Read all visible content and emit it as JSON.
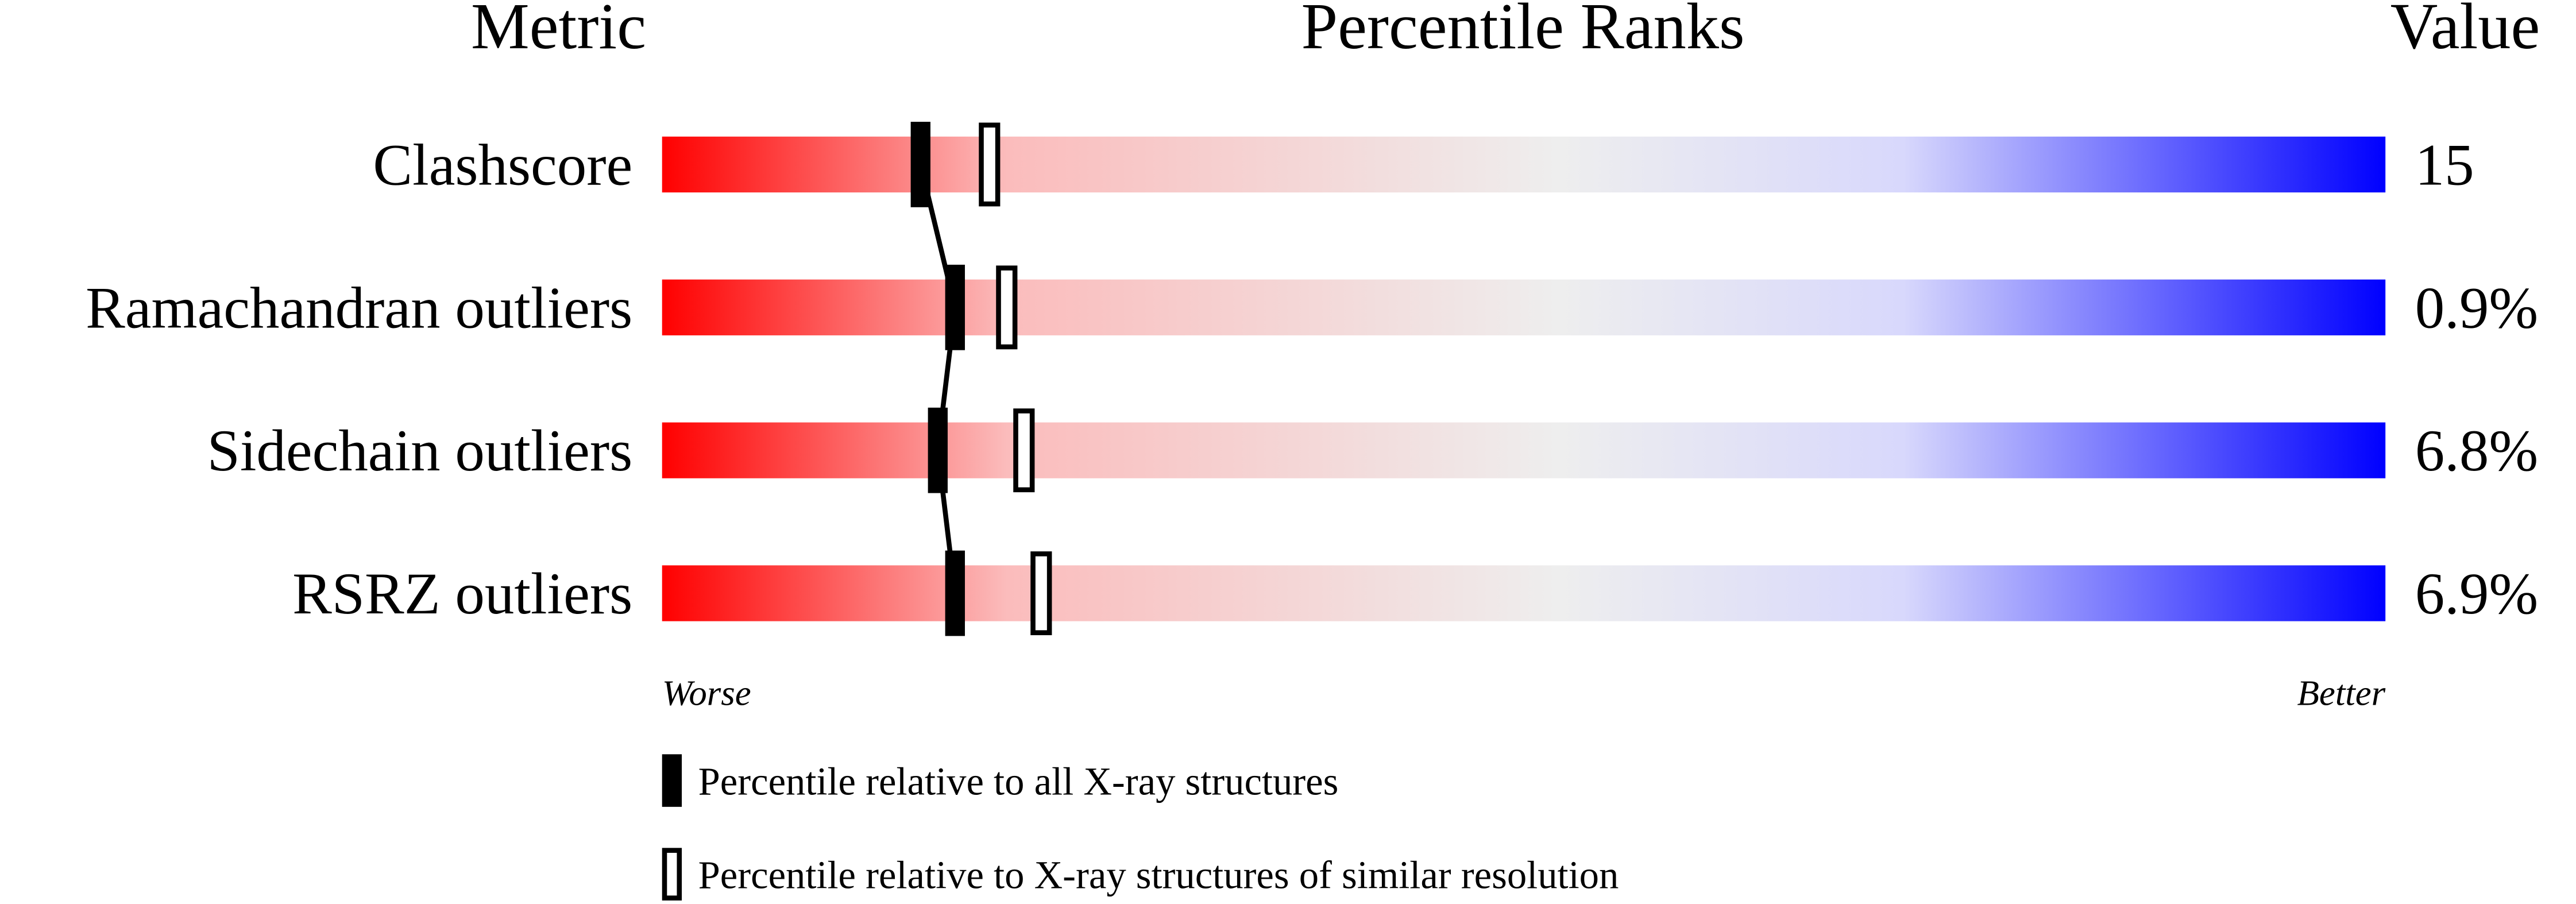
{
  "chart_data": {
    "type": "slider",
    "column_headers": [
      "Metric",
      "Percentile Ranks",
      "Value"
    ],
    "categories": [
      "Clashscore",
      "Ramachandran outliers",
      "Sidechain outliers",
      "RSRZ outliers"
    ],
    "metric_values": [
      "15",
      "0.9%",
      "6.8%",
      "6.9%"
    ],
    "xlim": [
      0,
      100
    ],
    "axis_labels": [
      "Worse",
      "Better"
    ],
    "gradient_colors": [
      "#ff0000",
      "#fbbcbc",
      "#eeeeee",
      "#d8d8fc",
      "#0000ff"
    ],
    "series": [
      {
        "name": "Percentile relative to all X-ray structures",
        "color": "#000000",
        "filled": true,
        "values": [
          15,
          17,
          16,
          17
        ]
      },
      {
        "name": "Percentile relative to X-ray structures of similar resolution",
        "color": "#000000",
        "filled": false,
        "values": [
          19,
          20,
          21,
          22
        ]
      }
    ]
  }
}
